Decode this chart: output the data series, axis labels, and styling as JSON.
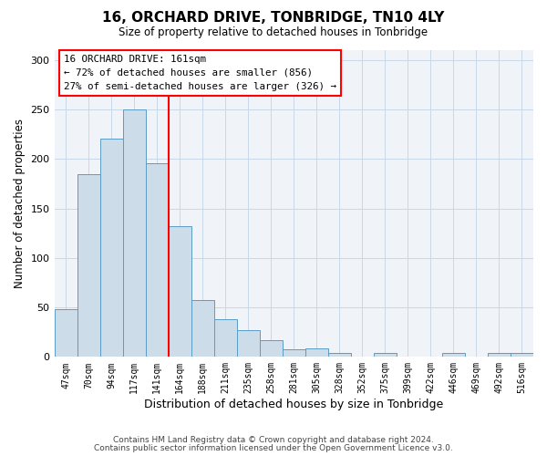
{
  "title": "16, ORCHARD DRIVE, TONBRIDGE, TN10 4LY",
  "subtitle": "Size of property relative to detached houses in Tonbridge",
  "xlabel": "Distribution of detached houses by size in Tonbridge",
  "ylabel": "Number of detached properties",
  "bar_labels": [
    "47sqm",
    "70sqm",
    "94sqm",
    "117sqm",
    "141sqm",
    "164sqm",
    "188sqm",
    "211sqm",
    "235sqm",
    "258sqm",
    "281sqm",
    "305sqm",
    "328sqm",
    "352sqm",
    "375sqm",
    "399sqm",
    "422sqm",
    "446sqm",
    "469sqm",
    "492sqm",
    "516sqm"
  ],
  "bar_heights": [
    48,
    185,
    221,
    250,
    196,
    132,
    57,
    38,
    27,
    17,
    8,
    9,
    4,
    0,
    4,
    0,
    0,
    4,
    0,
    4,
    4
  ],
  "bar_color": "#ccdde9",
  "bar_edge_color": "#5a9cc5",
  "vline_x": 4.5,
  "vline_color": "red",
  "annotation_title": "16 ORCHARD DRIVE: 161sqm",
  "annotation_line1": "← 72% of detached houses are smaller (856)",
  "annotation_line2": "27% of semi-detached houses are larger (326) →",
  "annotation_box_color": "white",
  "annotation_box_edge": "red",
  "ylim": [
    0,
    310
  ],
  "yticks": [
    0,
    50,
    100,
    150,
    200,
    250,
    300
  ],
  "footer1": "Contains HM Land Registry data © Crown copyright and database right 2024.",
  "footer2": "Contains public sector information licensed under the Open Government Licence v3.0.",
  "bg_color": "#f0f4f8"
}
